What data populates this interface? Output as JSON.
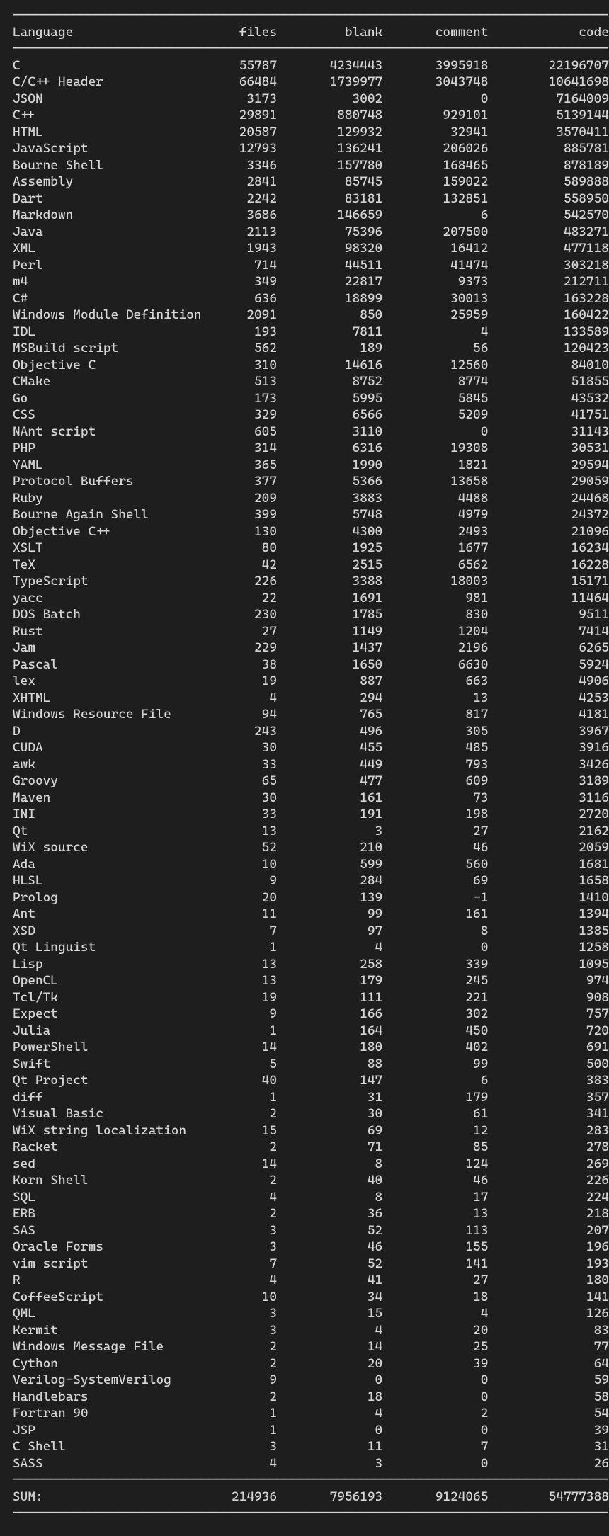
{
  "background_color": "#1e1e1e",
  "text_color": "#d4d4d4",
  "divider_char": "-",
  "divider_width": 79,
  "columns": [
    {
      "name": "Language",
      "width": 25,
      "align": "left"
    },
    {
      "name": "files",
      "width": 10,
      "align": "right"
    },
    {
      "name": "blank",
      "width": 14,
      "align": "right"
    },
    {
      "name": "comment",
      "width": 14,
      "align": "right"
    },
    {
      "name": "code",
      "width": 16,
      "align": "right"
    }
  ],
  "rows": [
    [
      "C",
      55787,
      4234443,
      3995918,
      22196707
    ],
    [
      "C/C++ Header",
      66484,
      1739977,
      3043748,
      10641698
    ],
    [
      "JSON",
      3173,
      3002,
      0,
      7164009
    ],
    [
      "C++",
      29891,
      880748,
      929101,
      5139144
    ],
    [
      "HTML",
      20587,
      129932,
      32941,
      3570411
    ],
    [
      "JavaScript",
      12793,
      136241,
      206026,
      885781
    ],
    [
      "Bourne Shell",
      3346,
      157780,
      168465,
      878189
    ],
    [
      "Assembly",
      2841,
      85745,
      159022,
      589888
    ],
    [
      "Dart",
      2242,
      83181,
      132851,
      558950
    ],
    [
      "Markdown",
      3686,
      146659,
      6,
      542570
    ],
    [
      "Java",
      2113,
      75396,
      207500,
      483271
    ],
    [
      "XML",
      1943,
      98320,
      16412,
      477118
    ],
    [
      "Perl",
      714,
      44511,
      41474,
      303218
    ],
    [
      "m4",
      349,
      22817,
      9373,
      212711
    ],
    [
      "C#",
      636,
      18899,
      30013,
      163228
    ],
    [
      "Windows Module Definition",
      2091,
      850,
      25959,
      160422
    ],
    [
      "IDL",
      193,
      7811,
      4,
      133589
    ],
    [
      "MSBuild script",
      562,
      189,
      56,
      120423
    ],
    [
      "Objective C",
      310,
      14616,
      12560,
      84010
    ],
    [
      "CMake",
      513,
      8752,
      8774,
      51855
    ],
    [
      "Go",
      173,
      5995,
      5845,
      43532
    ],
    [
      "CSS",
      329,
      6566,
      5209,
      41751
    ],
    [
      "NAnt script",
      605,
      3110,
      0,
      31143
    ],
    [
      "PHP",
      314,
      6316,
      19308,
      30531
    ],
    [
      "YAML",
      365,
      1990,
      1821,
      29594
    ],
    [
      "Protocol Buffers",
      377,
      5366,
      13658,
      29059
    ],
    [
      "Ruby",
      209,
      3883,
      4488,
      24468
    ],
    [
      "Bourne Again Shell",
      399,
      5748,
      4979,
      24372
    ],
    [
      "Objective C++",
      130,
      4300,
      2493,
      21096
    ],
    [
      "XSLT",
      80,
      1925,
      1677,
      16234
    ],
    [
      "TeX",
      42,
      2515,
      6562,
      16228
    ],
    [
      "TypeScript",
      226,
      3388,
      18003,
      15171
    ],
    [
      "yacc",
      22,
      1691,
      981,
      11464
    ],
    [
      "DOS Batch",
      230,
      1785,
      830,
      9511
    ],
    [
      "Rust",
      27,
      1149,
      1204,
      7414
    ],
    [
      "Jam",
      229,
      1437,
      2196,
      6265
    ],
    [
      "Pascal",
      38,
      1650,
      6630,
      5924
    ],
    [
      "lex",
      19,
      887,
      663,
      4906
    ],
    [
      "XHTML",
      4,
      294,
      13,
      4253
    ],
    [
      "Windows Resource File",
      94,
      765,
      817,
      4181
    ],
    [
      "D",
      243,
      496,
      305,
      3967
    ],
    [
      "CUDA",
      30,
      455,
      485,
      3916
    ],
    [
      "awk",
      33,
      449,
      793,
      3426
    ],
    [
      "Groovy",
      65,
      477,
      609,
      3189
    ],
    [
      "Maven",
      30,
      161,
      73,
      3116
    ],
    [
      "INI",
      33,
      191,
      198,
      2720
    ],
    [
      "Qt",
      13,
      3,
      27,
      2162
    ],
    [
      "WiX source",
      52,
      210,
      46,
      2059
    ],
    [
      "Ada",
      10,
      599,
      560,
      1681
    ],
    [
      "HLSL",
      9,
      284,
      69,
      1658
    ],
    [
      "Prolog",
      20,
      139,
      -1,
      1410
    ],
    [
      "Ant",
      11,
      99,
      161,
      1394
    ],
    [
      "XSD",
      7,
      97,
      8,
      1385
    ],
    [
      "Qt Linguist",
      1,
      4,
      0,
      1258
    ],
    [
      "Lisp",
      13,
      258,
      339,
      1095
    ],
    [
      "OpenCL",
      13,
      179,
      245,
      974
    ],
    [
      "Tcl/Tk",
      19,
      111,
      221,
      908
    ],
    [
      "Expect",
      9,
      166,
      302,
      757
    ],
    [
      "Julia",
      1,
      164,
      450,
      720
    ],
    [
      "PowerShell",
      14,
      180,
      402,
      691
    ],
    [
      "Swift",
      5,
      88,
      99,
      500
    ],
    [
      "Qt Project",
      40,
      147,
      6,
      383
    ],
    [
      "diff",
      1,
      31,
      179,
      357
    ],
    [
      "Visual Basic",
      2,
      30,
      61,
      341
    ],
    [
      "WiX string localization",
      15,
      69,
      12,
      283
    ],
    [
      "Racket",
      2,
      71,
      85,
      278
    ],
    [
      "sed",
      14,
      8,
      124,
      269
    ],
    [
      "Korn Shell",
      2,
      40,
      46,
      226
    ],
    [
      "SQL",
      4,
      8,
      17,
      224
    ],
    [
      "ERB",
      2,
      36,
      13,
      218
    ],
    [
      "SAS",
      3,
      52,
      113,
      207
    ],
    [
      "Oracle Forms",
      3,
      46,
      155,
      196
    ],
    [
      "vim script",
      7,
      52,
      141,
      193
    ],
    [
      "R",
      4,
      41,
      27,
      180
    ],
    [
      "CoffeeScript",
      10,
      34,
      18,
      141
    ],
    [
      "QML",
      3,
      15,
      4,
      126
    ],
    [
      "Kermit",
      3,
      4,
      20,
      83
    ],
    [
      "Windows Message File",
      2,
      14,
      25,
      77
    ],
    [
      "Cython",
      2,
      20,
      39,
      64
    ],
    [
      "Verilog-SystemVerilog",
      9,
      0,
      0,
      59
    ],
    [
      "Handlebars",
      2,
      18,
      0,
      58
    ],
    [
      "Fortran 90",
      1,
      4,
      2,
      54
    ],
    [
      "JSP",
      1,
      0,
      0,
      39
    ],
    [
      "C Shell",
      3,
      11,
      7,
      31
    ],
    [
      "SASS",
      4,
      3,
      0,
      26
    ]
  ],
  "sum_label": "SUM:",
  "sum": [
    214936,
    7956193,
    9124065,
    54777388
  ]
}
